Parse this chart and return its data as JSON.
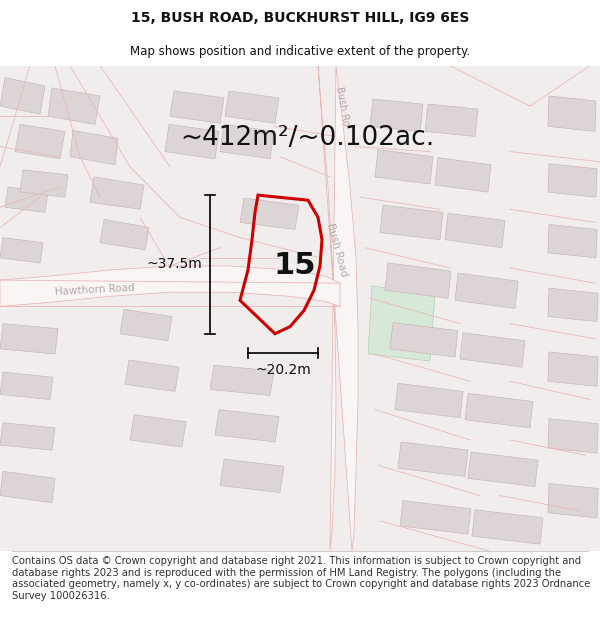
{
  "title": "15, BUSH ROAD, BUCKHURST HILL, IG9 6ES",
  "subtitle": "Map shows position and indicative extent of the property.",
  "area_text": "~412m²/~0.102ac.",
  "dimension_v": "~37.5m",
  "dimension_h": "~20.2m",
  "property_number": "15",
  "footer": "Contains OS data © Crown copyright and database right 2021. This information is subject to Crown copyright and database rights 2023 and is reproduced with the permission of HM Land Registry. The polygons (including the associated geometry, namely x, y co-ordinates) are subject to Crown copyright and database rights 2023 Ordnance Survey 100026316.",
  "bg_color": "#f5f0f0",
  "map_bg": "#f2eded",
  "building_color": "#ddd5d5",
  "building_edge": "#c8b8b8",
  "road_fill": "#f9f5f5",
  "road_edge": "#e8b8b8",
  "property_color": "#cc0000",
  "green_fill": "#d8e8d8",
  "green_edge": "#b8ccb8",
  "label_color": "#b8a8a8",
  "title_fontsize": 10,
  "subtitle_fontsize": 8.5,
  "area_fontsize": 19,
  "dim_fontsize": 10,
  "num_fontsize": 22,
  "footer_fontsize": 7.2,
  "road_lw": 0.6,
  "prop_lw": 2.2
}
